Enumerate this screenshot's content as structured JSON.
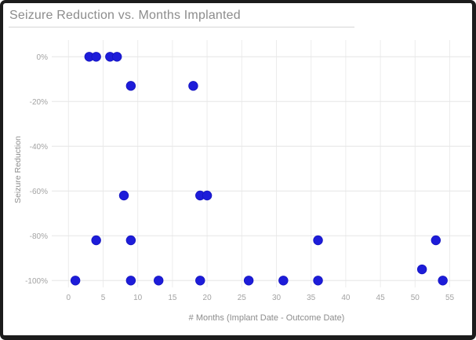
{
  "window": {
    "title": "Seizure Reduction vs. Months Implanted"
  },
  "chart_data": {
    "type": "scatter",
    "title": "Seizure Reduction vs. Months Implanted",
    "xlabel": "# Months (Implant Date - Outcome Date)",
    "ylabel": "Seizure Reduction",
    "xlim": [
      0,
      55
    ],
    "ylim": [
      -100,
      0
    ],
    "x_ticks": [
      0,
      5,
      10,
      15,
      20,
      25,
      30,
      35,
      40,
      45,
      50,
      55
    ],
    "y_ticks": [
      0,
      -20,
      -40,
      -60,
      -80,
      -100
    ],
    "y_tick_labels": [
      "0%",
      "-20%",
      "-40%",
      "-60%",
      "-80%",
      "-100%"
    ],
    "grid": true,
    "legend": "none",
    "points": [
      {
        "x": 3,
        "y": 0
      },
      {
        "x": 4,
        "y": 0
      },
      {
        "x": 6,
        "y": 0
      },
      {
        "x": 7,
        "y": 0
      },
      {
        "x": 9,
        "y": -13
      },
      {
        "x": 18,
        "y": -13
      },
      {
        "x": 8,
        "y": -62
      },
      {
        "x": 19,
        "y": -62
      },
      {
        "x": 20,
        "y": -62
      },
      {
        "x": 4,
        "y": -82
      },
      {
        "x": 9,
        "y": -82
      },
      {
        "x": 36,
        "y": -82
      },
      {
        "x": 53,
        "y": -82
      },
      {
        "x": 51,
        "y": -95
      },
      {
        "x": 1,
        "y": -100
      },
      {
        "x": 9,
        "y": -100
      },
      {
        "x": 13,
        "y": -100
      },
      {
        "x": 19,
        "y": -100
      },
      {
        "x": 26,
        "y": -100
      },
      {
        "x": 31,
        "y": -100
      },
      {
        "x": 36,
        "y": -100
      },
      {
        "x": 54,
        "y": -100
      }
    ],
    "style": {
      "marker_color": "#1d1cd9",
      "marker_edge_color": "#1414bf",
      "grid_color_v": "#ececec",
      "grid_color_h": "#e6e6e6",
      "tick_label_color": "#a3a3a3",
      "title_color": "#8c8c8c",
      "border_color": "#1c1c1c",
      "divider_color": "#d6d6d6",
      "background": "#ffffff"
    }
  }
}
